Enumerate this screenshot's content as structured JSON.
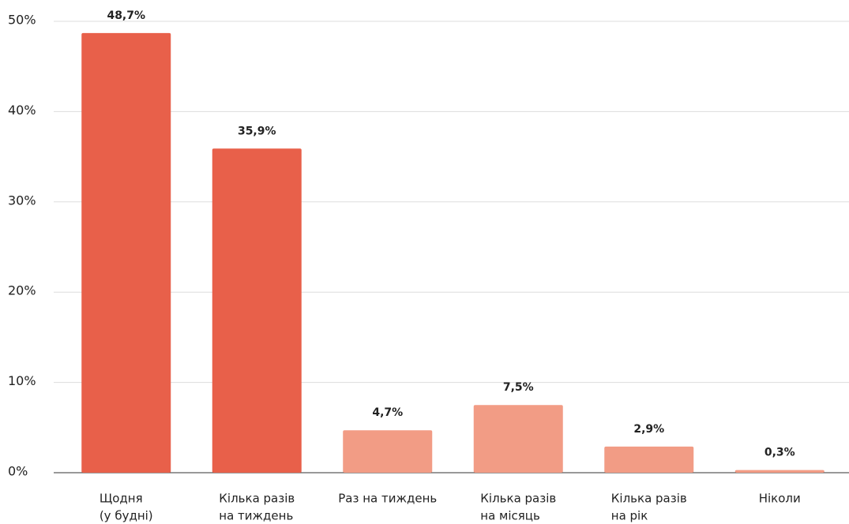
{
  "chart_data": {
    "type": "bar",
    "categories": [
      [
        "Щодня",
        "(у будні)"
      ],
      [
        "Кілька разів",
        "на тиждень"
      ],
      [
        "Раз на тиждень"
      ],
      [
        "Кілька разів",
        "на місяць"
      ],
      [
        "Кілька разів",
        "на рік"
      ],
      [
        "Ніколи"
      ]
    ],
    "values": [
      48.7,
      35.9,
      4.7,
      7.5,
      2.9,
      0.3
    ],
    "value_labels": [
      "48,7%",
      "35,9%",
      "4,7%",
      "7,5%",
      "2,9%",
      "0,3%"
    ],
    "colors": [
      "#e8604a",
      "#e8604a",
      "#f29c85",
      "#f29c85",
      "#f29c85",
      "#f29c85"
    ],
    "ylim": [
      0,
      50
    ],
    "yticks": [
      {
        "value": 0,
        "label": "0%"
      },
      {
        "value": 10,
        "label": "10%"
      },
      {
        "value": 20,
        "label": "20%"
      },
      {
        "value": 30,
        "label": "30%"
      },
      {
        "value": 40,
        "label": "40%"
      },
      {
        "value": 50,
        "label": "50%"
      }
    ],
    "grid": true
  }
}
